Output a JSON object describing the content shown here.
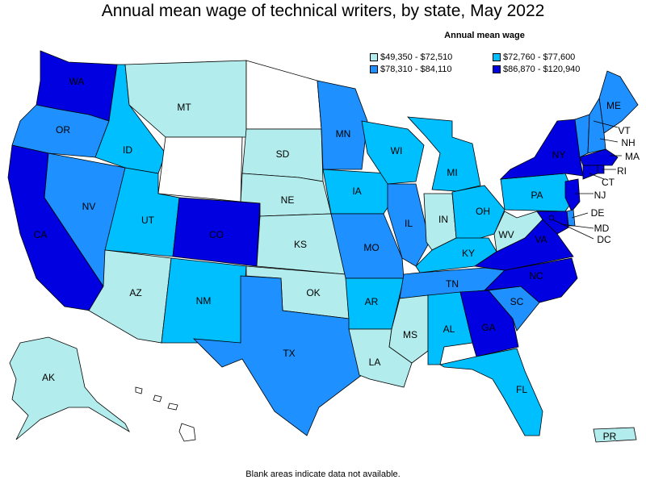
{
  "title": "Annual mean wage of technical writers, by state, May 2022",
  "legend": {
    "title": "Annual mean wage",
    "items": [
      {
        "label": "$49,350 - $72,510",
        "color": "#b3ecec"
      },
      {
        "label": "$72,760 - $77,600",
        "color": "#00bfff"
      },
      {
        "label": "$78,310 - $84,110",
        "color": "#1e90ff"
      },
      {
        "label": "$86,870 - $120,940",
        "color": "#0000e0"
      }
    ]
  },
  "footnote": "Blank areas indicate data not available.",
  "states": {
    "WA": {
      "label": "WA",
      "tier": 3
    },
    "OR": {
      "label": "OR",
      "tier": 2
    },
    "CA": {
      "label": "CA",
      "tier": 3
    },
    "NV": {
      "label": "NV",
      "tier": 2
    },
    "ID": {
      "label": "ID",
      "tier": 1
    },
    "MT": {
      "label": "MT",
      "tier": 0
    },
    "WY": {
      "label": "",
      "tier": -1
    },
    "UT": {
      "label": "UT",
      "tier": 1
    },
    "AZ": {
      "label": "AZ",
      "tier": 0
    },
    "CO": {
      "label": "CO",
      "tier": 3
    },
    "NM": {
      "label": "NM",
      "tier": 1
    },
    "ND": {
      "label": "",
      "tier": -1
    },
    "SD": {
      "label": "SD",
      "tier": 0
    },
    "NE": {
      "label": "NE",
      "tier": 0
    },
    "KS": {
      "label": "KS",
      "tier": 0
    },
    "OK": {
      "label": "OK",
      "tier": 0
    },
    "TX": {
      "label": "TX",
      "tier": 2
    },
    "MN": {
      "label": "MN",
      "tier": 2
    },
    "IA": {
      "label": "IA",
      "tier": 1
    },
    "MO": {
      "label": "MO",
      "tier": 2
    },
    "AR": {
      "label": "AR",
      "tier": 1
    },
    "LA": {
      "label": "LA",
      "tier": 0
    },
    "WI": {
      "label": "WI",
      "tier": 1
    },
    "IL": {
      "label": "IL",
      "tier": 2
    },
    "MI": {
      "label": "MI",
      "tier": 1
    },
    "IN": {
      "label": "IN",
      "tier": 0
    },
    "OH": {
      "label": "OH",
      "tier": 1
    },
    "KY": {
      "label": "KY",
      "tier": 1
    },
    "TN": {
      "label": "TN",
      "tier": 2
    },
    "MS": {
      "label": "MS",
      "tier": 0
    },
    "AL": {
      "label": "AL",
      "tier": 1
    },
    "GA": {
      "label": "GA",
      "tier": 3
    },
    "FL": {
      "label": "FL",
      "tier": 1
    },
    "SC": {
      "label": "SC",
      "tier": 2
    },
    "NC": {
      "label": "NC",
      "tier": 3
    },
    "VA": {
      "label": "VA",
      "tier": 3
    },
    "WV": {
      "label": "WV",
      "tier": 0
    },
    "PA": {
      "label": "PA",
      "tier": 1
    },
    "NY": {
      "label": "NY",
      "tier": 3
    },
    "ME": {
      "label": "ME",
      "tier": 2
    },
    "VT": {
      "label": "VT",
      "tier": 2
    },
    "NH": {
      "label": "NH",
      "tier": 2
    },
    "MA": {
      "label": "MA",
      "tier": 3
    },
    "RI": {
      "label": "RI",
      "tier": 3
    },
    "CT": {
      "label": "CT",
      "tier": 3
    },
    "NJ": {
      "label": "NJ",
      "tier": 3
    },
    "DE": {
      "label": "DE",
      "tier": 2
    },
    "MD": {
      "label": "MD",
      "tier": 3
    },
    "DC": {
      "label": "DC",
      "tier": 3
    },
    "AK": {
      "label": "AK",
      "tier": 0
    },
    "HI": {
      "label": "",
      "tier": -1
    },
    "PR": {
      "label": "PR",
      "tier": 0
    }
  }
}
